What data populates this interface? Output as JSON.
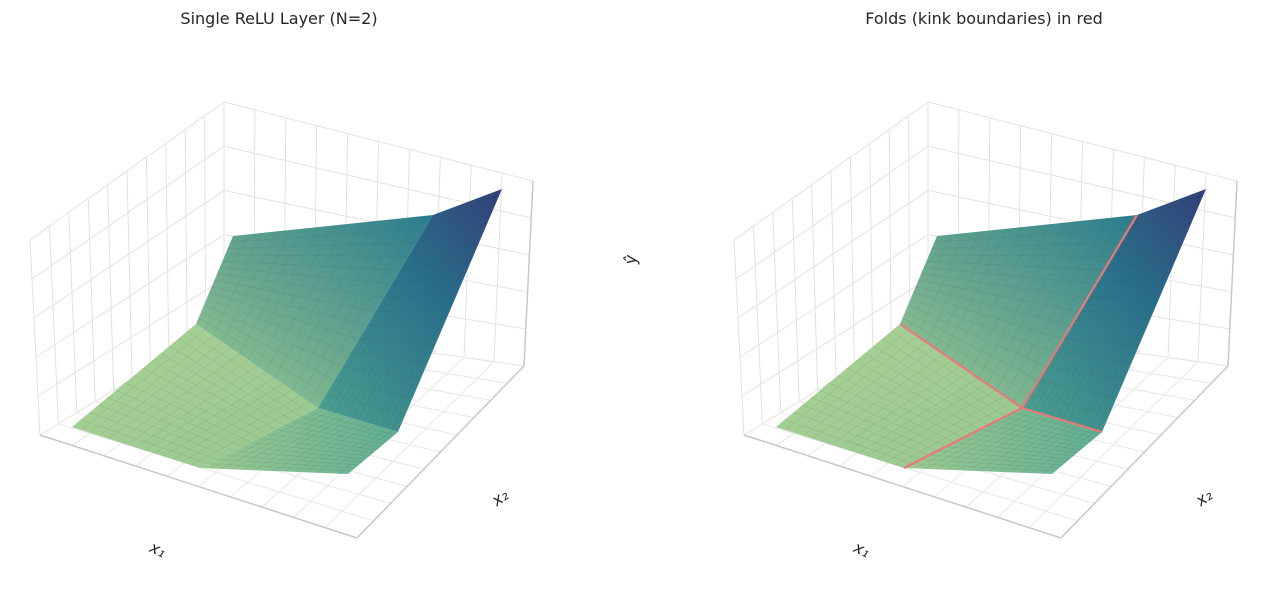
{
  "chart_data": [
    {
      "type": "surface",
      "title": "Single ReLU Layer (N=2)",
      "xlabel": "x₁",
      "ylabel": "x₂",
      "zlabel": "ŷ",
      "colormap": "crest",
      "tick_labels": "none",
      "grid": true
    },
    {
      "type": "surface",
      "title": "Folds (kink boundaries) in red",
      "xlabel": "x₁",
      "ylabel": "x₂",
      "colormap": "crest",
      "fold_color": "#e8787a",
      "tick_labels": "none",
      "grid": true
    }
  ]
}
